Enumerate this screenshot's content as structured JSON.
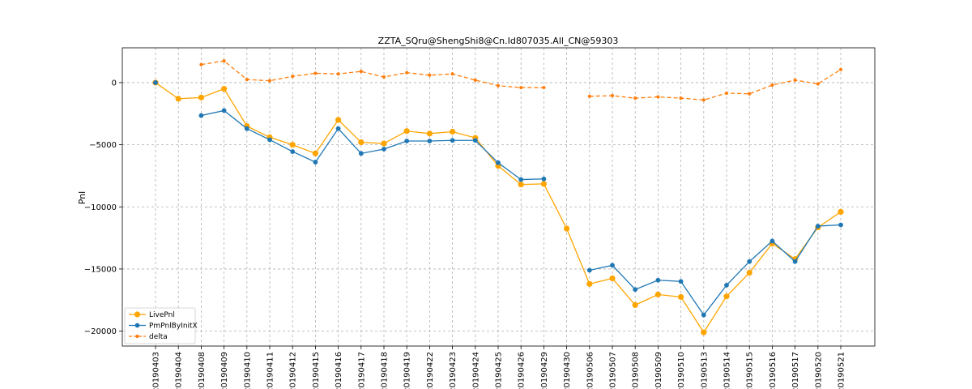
{
  "chart_data": {
    "type": "line",
    "title": "ZZTA_SQru@ShengShi8@Cn.Id807035.All_CN@59303",
    "xlabel": "",
    "ylabel": "Pnl",
    "categories": [
      "20190403",
      "20190404",
      "20190408",
      "20190409",
      "20190410",
      "20190411",
      "20190412",
      "20190415",
      "20190416",
      "20190417",
      "20190418",
      "20190419",
      "20190422",
      "20190423",
      "20190424",
      "20190425",
      "20190426",
      "20190429",
      "20190430",
      "20190506",
      "20190507",
      "20190508",
      "20190509",
      "20190510",
      "20190513",
      "20190514",
      "20190515",
      "20190516",
      "20190517",
      "20190520",
      "20190521"
    ],
    "ylim": [
      -21200,
      2800
    ],
    "yticks": [
      0,
      -5000,
      -10000,
      -15000,
      -20000
    ],
    "ytick_labels": [
      "0",
      "−5000",
      "−10000",
      "−15000",
      "−20000"
    ],
    "grid": true,
    "legend_position": "lower-left",
    "series": [
      {
        "name": "LivePnl",
        "color": "#ffa500",
        "style": "solid",
        "marker": "large-circle",
        "values": [
          0,
          -1300,
          -1200,
          -500,
          -3500,
          -4400,
          -5000,
          -5700,
          -3000,
          -4800,
          -4900,
          -3900,
          -4100,
          -3950,
          -4450,
          -6700,
          -8200,
          -8150,
          -11750,
          -16200,
          -15750,
          -17900,
          -17050,
          -17250,
          -20100,
          -17200,
          -15300,
          -12950,
          -14200,
          -11650,
          -10400
        ]
      },
      {
        "name": "PmPnlByInitX",
        "color": "#1f77b4",
        "style": "solid",
        "marker": "circle",
        "values": [
          0,
          null,
          -2650,
          -2250,
          -3700,
          -4600,
          -5550,
          -6400,
          -3700,
          -5700,
          -5350,
          -4700,
          -4700,
          -4650,
          -4650,
          -6450,
          -7800,
          -7750,
          null,
          -15100,
          -14700,
          -16650,
          -15900,
          -16000,
          -18700,
          -16300,
          -14400,
          -12750,
          -14400,
          -11550,
          -11450
        ]
      },
      {
        "name": "delta",
        "color": "#ff7f0e",
        "style": "dashed",
        "marker": "small-circle",
        "values": [
          null,
          null,
          1450,
          1750,
          250,
          150,
          500,
          750,
          700,
          900,
          450,
          800,
          600,
          700,
          200,
          -250,
          -400,
          -400,
          null,
          -1100,
          -1050,
          -1250,
          -1150,
          -1250,
          -1400,
          -850,
          -900,
          -200,
          200,
          -100,
          1050
        ]
      }
    ]
  }
}
